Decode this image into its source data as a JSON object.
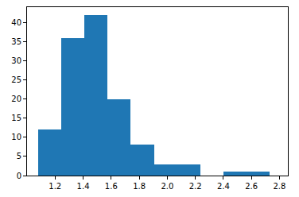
{
  "chart_data": {
    "type": "histogram",
    "bins": [
      1.08,
      1.245,
      1.41,
      1.575,
      1.74,
      1.905,
      2.07,
      2.235,
      2.4,
      2.565,
      2.73
    ],
    "values": [
      12,
      36,
      42,
      20,
      8,
      3,
      3,
      0,
      1,
      1
    ],
    "color": "#1f77b4",
    "xlim": [
      1.0,
      2.86
    ],
    "xticks": [
      1.2,
      1.4,
      1.6,
      1.8,
      {
        "value": 2,
        "label": "2.0"
      },
      2.2,
      2.4,
      2.6,
      2.8
    ],
    "ylim": [
      0,
      44
    ],
    "yticks": [
      0,
      5,
      10,
      15,
      20,
      25,
      30,
      35,
      40
    ],
    "grid": false
  }
}
